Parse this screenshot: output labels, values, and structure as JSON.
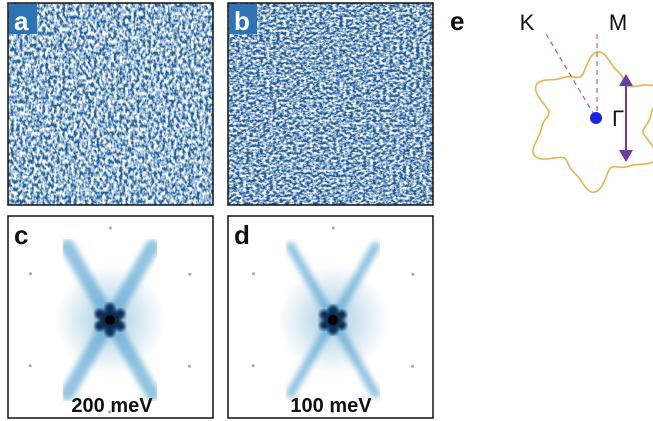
{
  "panels": [
    {
      "label": "a"
    },
    {
      "label": "b"
    },
    {
      "label": "c",
      "caption": "200 meV"
    },
    {
      "label": "d",
      "caption": "100 meV"
    },
    {
      "label": "e"
    }
  ],
  "diagram": {
    "labels": [
      "K",
      "M",
      "Γ"
    ]
  }
}
